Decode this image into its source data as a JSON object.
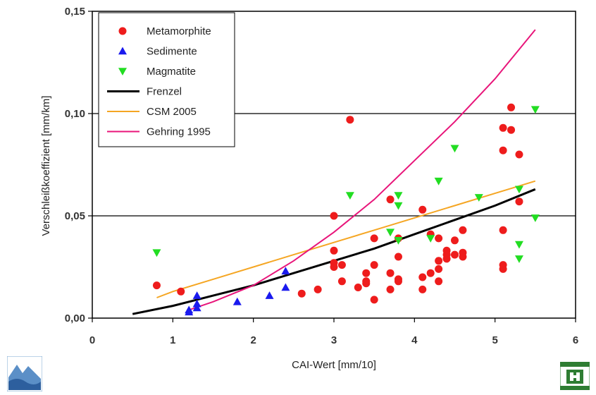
{
  "chart_data": {
    "type": "scatter",
    "xlabel": "CAI-Wert [mm/10]",
    "ylabel": "Verschleißkoeffizient [mm/km]",
    "xlim": [
      0,
      6
    ],
    "ylim": [
      0,
      0.15
    ],
    "x_ticks": [
      "0",
      "1",
      "2",
      "3",
      "4",
      "5",
      "6"
    ],
    "y_ticks": [
      "0,00",
      "0,05",
      "0,10",
      "0,15"
    ],
    "grid": "horizontal",
    "legend_position": "top-left",
    "series": [
      {
        "name": "Metamorphite",
        "kind": "scatter",
        "marker": "circle",
        "color": "#ee1c1c",
        "points": [
          [
            0.8,
            0.016
          ],
          [
            1.1,
            0.013
          ],
          [
            2.6,
            0.012
          ],
          [
            2.8,
            0.014
          ],
          [
            3.0,
            0.05
          ],
          [
            3.0,
            0.033
          ],
          [
            3.0,
            0.027
          ],
          [
            3.0,
            0.025
          ],
          [
            3.1,
            0.026
          ],
          [
            3.1,
            0.018
          ],
          [
            3.2,
            0.097
          ],
          [
            3.3,
            0.015
          ],
          [
            3.4,
            0.022
          ],
          [
            3.4,
            0.018
          ],
          [
            3.4,
            0.017
          ],
          [
            3.5,
            0.039
          ],
          [
            3.5,
            0.026
          ],
          [
            3.5,
            0.009
          ],
          [
            3.7,
            0.058
          ],
          [
            3.7,
            0.022
          ],
          [
            3.7,
            0.014
          ],
          [
            3.8,
            0.039
          ],
          [
            3.8,
            0.03
          ],
          [
            3.8,
            0.019
          ],
          [
            3.8,
            0.018
          ],
          [
            4.1,
            0.053
          ],
          [
            4.1,
            0.02
          ],
          [
            4.1,
            0.014
          ],
          [
            4.2,
            0.041
          ],
          [
            4.2,
            0.022
          ],
          [
            4.3,
            0.039
          ],
          [
            4.3,
            0.028
          ],
          [
            4.3,
            0.024
          ],
          [
            4.3,
            0.018
          ],
          [
            4.4,
            0.033
          ],
          [
            4.4,
            0.031
          ],
          [
            4.4,
            0.029
          ],
          [
            4.5,
            0.038
          ],
          [
            4.5,
            0.031
          ],
          [
            4.6,
            0.043
          ],
          [
            4.6,
            0.032
          ],
          [
            4.6,
            0.03
          ],
          [
            5.1,
            0.093
          ],
          [
            5.1,
            0.082
          ],
          [
            5.1,
            0.043
          ],
          [
            5.1,
            0.026
          ],
          [
            5.1,
            0.024
          ],
          [
            5.2,
            0.103
          ],
          [
            5.2,
            0.092
          ],
          [
            5.3,
            0.08
          ],
          [
            5.3,
            0.057
          ]
        ]
      },
      {
        "name": "Sedimente",
        "kind": "scatter",
        "marker": "triangle-up",
        "color": "#1a1aee",
        "points": [
          [
            1.2,
            0.004
          ],
          [
            1.2,
            0.003
          ],
          [
            1.3,
            0.011
          ],
          [
            1.3,
            0.007
          ],
          [
            1.3,
            0.005
          ],
          [
            1.8,
            0.008
          ],
          [
            2.2,
            0.011
          ],
          [
            2.4,
            0.023
          ],
          [
            2.4,
            0.015
          ]
        ]
      },
      {
        "name": "Magmatite",
        "kind": "scatter",
        "marker": "triangle-down",
        "color": "#22dd22",
        "points": [
          [
            0.8,
            0.032
          ],
          [
            3.2,
            0.06
          ],
          [
            3.7,
            0.042
          ],
          [
            3.8,
            0.06
          ],
          [
            3.8,
            0.055
          ],
          [
            3.8,
            0.038
          ],
          [
            4.2,
            0.039
          ],
          [
            4.3,
            0.067
          ],
          [
            4.5,
            0.083
          ],
          [
            4.8,
            0.059
          ],
          [
            5.3,
            0.063
          ],
          [
            5.3,
            0.036
          ],
          [
            5.3,
            0.029
          ],
          [
            5.5,
            0.102
          ],
          [
            5.5,
            0.049
          ]
        ]
      },
      {
        "name": "Frenzel",
        "kind": "line",
        "color": "#000000",
        "points": [
          [
            0.5,
            0.002
          ],
          [
            1.0,
            0.006
          ],
          [
            1.5,
            0.011
          ],
          [
            2.0,
            0.016
          ],
          [
            2.5,
            0.022
          ],
          [
            3.0,
            0.028
          ],
          [
            3.5,
            0.034
          ],
          [
            4.0,
            0.041
          ],
          [
            4.5,
            0.048
          ],
          [
            5.0,
            0.055
          ],
          [
            5.5,
            0.063
          ]
        ]
      },
      {
        "name": "CSM 2005",
        "kind": "line",
        "color": "#f5a623",
        "points": [
          [
            0.8,
            0.01
          ],
          [
            1.0,
            0.013
          ],
          [
            1.5,
            0.019
          ],
          [
            2.0,
            0.025
          ],
          [
            2.5,
            0.031
          ],
          [
            3.0,
            0.037
          ],
          [
            3.5,
            0.043
          ],
          [
            4.0,
            0.049
          ],
          [
            4.5,
            0.055
          ],
          [
            5.0,
            0.061
          ],
          [
            5.5,
            0.067
          ]
        ]
      },
      {
        "name": "Gehring 1995",
        "kind": "line",
        "color": "#e8157a",
        "points": [
          [
            1.2,
            0.004
          ],
          [
            1.5,
            0.008
          ],
          [
            2.0,
            0.016
          ],
          [
            2.5,
            0.028
          ],
          [
            3.0,
            0.042
          ],
          [
            3.5,
            0.058
          ],
          [
            4.0,
            0.077
          ],
          [
            4.5,
            0.096
          ],
          [
            5.0,
            0.117
          ],
          [
            5.5,
            0.141
          ]
        ]
      }
    ]
  }
}
